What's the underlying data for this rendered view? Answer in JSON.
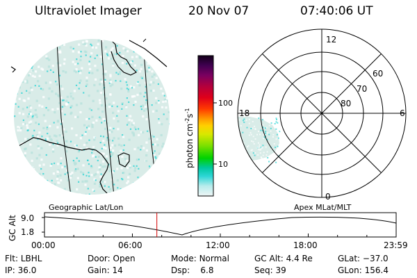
{
  "header": {
    "title": "Ultraviolet Imager",
    "date": "20 Nov 07",
    "time": "07:40:06 UT"
  },
  "colorbar": {
    "unit_text": "photon cm",
    "unit_sup1": "-2",
    "unit_mid": "s",
    "unit_sup2": "-1",
    "tick_100": "100",
    "tick_10": "10"
  },
  "polar_plot": {
    "mlt_top": "12",
    "mlt_left": "18",
    "mlt_right": "6",
    "mlt_bottom": "0",
    "lat_60": "60",
    "lat_70": "70",
    "lat_80": "80"
  },
  "panel_labels": {
    "geographic": "Geographic Lat/Lon",
    "apex": "Apex MLat/MLT"
  },
  "altitude_plot": {
    "ylabel": "GC Alt",
    "y_max": "9.0",
    "y_min": "1.8",
    "times": [
      "00:00",
      "06:00",
      "12:00",
      "18:00",
      "23:59"
    ],
    "current_time_fraction": 0.3195
  },
  "status": {
    "filter_label": "Flt:",
    "filter_value": "LBHL",
    "ip_label": "IP:",
    "ip_value": "36.0",
    "door_label": "Door:",
    "door_value": "Open",
    "gain_label": "Gain:",
    "gain_value": "14",
    "mode_label": "Mode:",
    "mode_value": "Normal",
    "dsp_label": "Dsp:",
    "dsp_value": "6.8",
    "gcalt_label": "GC Alt:",
    "gcalt_value": "4.4 Re",
    "seq_label": "Seq:",
    "seq_value": "39",
    "glat_label": "GLat:",
    "glat_value": "−37.0",
    "glon_label": "GLon:",
    "glon_value": "156.4"
  },
  "colors": {
    "aurora_light": "#d8ece9",
    "aurora_cyan": "#26d4d4",
    "marker_red": "#d40000"
  }
}
